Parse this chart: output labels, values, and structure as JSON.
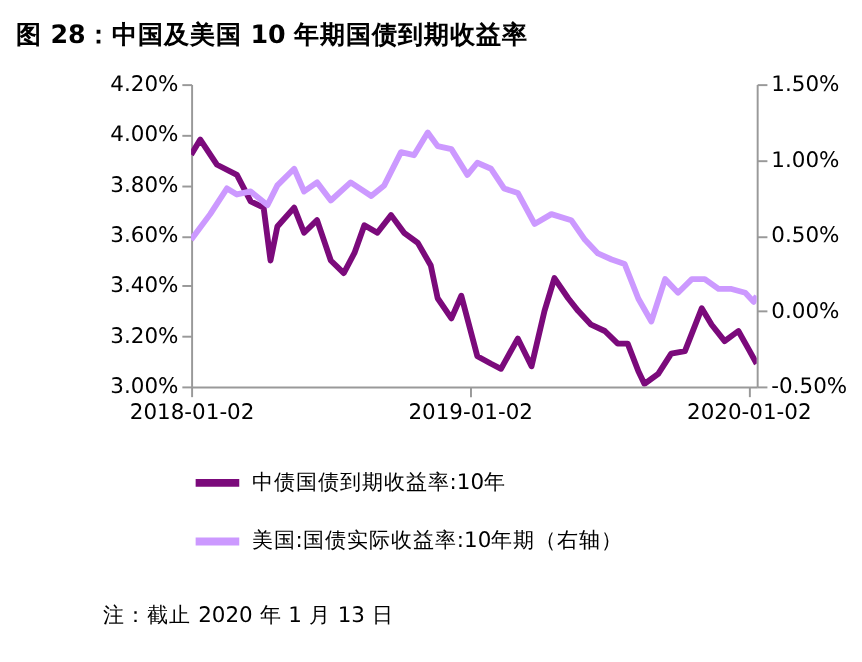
{
  "chart_data": {
    "type": "line",
    "title": "图 28：中国及美国 10 年期国债到期收益率",
    "annotations": [
      "注：截止 2020 年 1 月 13 日"
    ],
    "xlim": [
      "2018-01-02",
      "2020-01-13"
    ],
    "xticks": [
      "2018-01-02",
      "2019-01-02",
      "2020-01-02"
    ],
    "ylim": [
      3.0,
      4.2
    ],
    "yticks": [
      {
        "value": 3.0,
        "label": "3.00%"
      },
      {
        "value": 3.2,
        "label": "3.20%"
      },
      {
        "value": 3.4,
        "label": "3.40%"
      },
      {
        "value": 3.6,
        "label": "3.60%"
      },
      {
        "value": 3.8,
        "label": "3.80%"
      },
      {
        "value": 4.0,
        "label": "4.00%"
      },
      {
        "value": 4.2,
        "label": "4.20%"
      }
    ],
    "y2lim": [
      -0.5,
      1.5
    ],
    "y2ticks": [
      {
        "value": -0.5,
        "label": "-0.50%"
      },
      {
        "value": 0.0,
        "label": "0.00%"
      },
      {
        "value": 0.5,
        "label": "0.50%"
      },
      {
        "value": 1.0,
        "label": "1.00%"
      },
      {
        "value": 1.5,
        "label": "1.50%"
      }
    ],
    "grid": false,
    "legend": "bottom",
    "marker": "none",
    "line_style": "solid",
    "series": [
      {
        "name": "中债国债到期收益率:10年",
        "color": "#7b0a7b",
        "x": [
          "2018-01-02",
          "2018-01-14",
          "2018-02-05",
          "2018-03-03",
          "2018-03-21",
          "2018-04-07",
          "2018-04-16",
          "2018-04-25",
          "2018-05-17",
          "2018-05-30",
          "2018-06-16",
          "2018-07-04",
          "2018-07-21",
          "2018-08-04",
          "2018-08-17",
          "2018-09-03",
          "2018-09-21",
          "2018-10-08",
          "2018-10-26",
          "2018-11-12",
          "2018-11-21",
          "2018-12-09",
          "2018-12-22",
          "2019-01-12",
          "2019-01-30",
          "2019-02-12",
          "2019-03-06",
          "2019-03-24",
          "2019-04-10",
          "2019-04-23",
          "2019-05-11",
          "2019-05-24",
          "2019-06-10",
          "2019-06-28",
          "2019-07-15",
          "2019-07-28",
          "2019-08-11",
          "2019-08-19",
          "2019-09-06",
          "2019-09-23",
          "2019-10-11",
          "2019-11-02",
          "2019-11-15",
          "2019-12-02",
          "2019-12-20",
          "2020-01-02",
          "2020-01-13"
        ],
        "values": [
          3.92,
          3.98,
          3.88,
          3.84,
          3.735,
          3.71,
          3.5,
          3.635,
          3.71,
          3.61,
          3.66,
          3.5,
          3.45,
          3.53,
          3.64,
          3.61,
          3.68,
          3.61,
          3.57,
          3.48,
          3.35,
          3.27,
          3.36,
          3.12,
          3.09,
          3.07,
          3.19,
          3.08,
          3.3,
          3.43,
          3.35,
          3.3,
          3.245,
          3.22,
          3.17,
          3.17,
          3.06,
          3.01,
          3.05,
          3.13,
          3.14,
          3.31,
          3.245,
          3.18,
          3.22,
          3.15,
          3.09
        ]
      },
      {
        "name": "美国:国债实际收益率:10年期（右轴）",
        "color": "#cc99ff",
        "axis": "y2",
        "x": [
          "2018-01-02",
          "2018-01-27",
          "2018-02-18",
          "2018-03-03",
          "2018-03-21",
          "2018-04-12",
          "2018-04-25",
          "2018-05-17",
          "2018-05-30",
          "2018-06-16",
          "2018-07-04",
          "2018-07-30",
          "2018-08-26",
          "2018-09-12",
          "2018-10-04",
          "2018-10-21",
          "2018-11-08",
          "2018-11-21",
          "2018-12-09",
          "2018-12-30",
          "2019-01-12",
          "2019-01-30",
          "2019-02-16",
          "2019-03-06",
          "2019-03-28",
          "2019-04-19",
          "2019-05-15",
          "2019-06-02",
          "2019-06-19",
          "2019-07-07",
          "2019-07-24",
          "2019-08-11",
          "2019-08-28",
          "2019-09-15",
          "2019-10-02",
          "2019-10-20",
          "2019-11-06",
          "2019-11-24",
          "2019-12-11",
          "2019-12-29",
          "2020-01-09",
          "2020-01-13"
        ],
        "values": [
          0.47,
          0.64,
          0.81,
          0.77,
          0.79,
          0.7,
          0.83,
          0.94,
          0.79,
          0.85,
          0.73,
          0.85,
          0.76,
          0.83,
          1.05,
          1.03,
          1.18,
          1.09,
          1.07,
          0.9,
          0.98,
          0.94,
          0.81,
          0.78,
          0.575,
          0.64,
          0.6,
          0.47,
          0.38,
          0.34,
          0.31,
          0.08,
          -0.07,
          0.21,
          0.12,
          0.21,
          0.21,
          0.145,
          0.145,
          0.12,
          0.06,
          0.1
        ]
      }
    ]
  }
}
